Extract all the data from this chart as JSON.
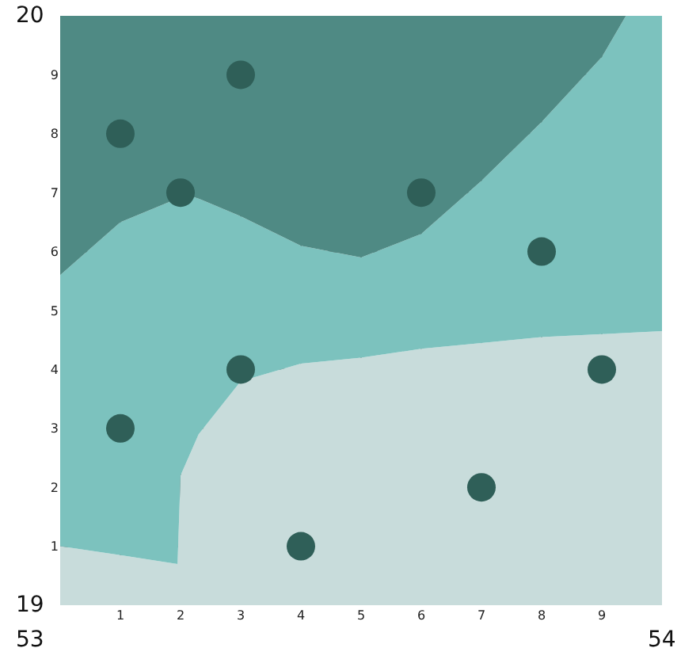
{
  "chart_data": {
    "type": "area",
    "stacked": true,
    "x": [
      0,
      1,
      1.95,
      2,
      2.3,
      3,
      4,
      5,
      6,
      7,
      8,
      9,
      9.4,
      10
    ],
    "series": [
      {
        "color": "#c8dcdb",
        "values": [
          1.0,
          0.85,
          0.7,
          2.2,
          2.9,
          3.8,
          4.1,
          4.2,
          4.35,
          4.45,
          4.55,
          4.6,
          4.62,
          4.65
        ]
      },
      {
        "color": "#7cc2be",
        "values": [
          4.6,
          5.65,
          6.2,
          4.8,
          4.0,
          2.8,
          2.0,
          1.7,
          1.95,
          2.75,
          3.65,
          4.7,
          5.38,
          5.35
        ]
      },
      {
        "color": "#4f8a84",
        "values": [
          4.4,
          3.5,
          3.1,
          3.0,
          3.1,
          3.4,
          3.9,
          4.1,
          3.7,
          2.8,
          1.8,
          0.7,
          0,
          0
        ]
      },
      {
        "type": "scatter",
        "marker": "circle",
        "color": "#2f5f58",
        "x": [
          1,
          2,
          3,
          6,
          8,
          1,
          3,
          9,
          7,
          4
        ],
        "values": [
          8,
          7,
          9,
          7,
          6,
          3,
          4,
          4,
          2,
          1
        ]
      }
    ],
    "xlim": [
      0,
      10
    ],
    "xticks": [
      1,
      2,
      3,
      4,
      5,
      6,
      7,
      8,
      9
    ],
    "ylim": [
      0,
      10
    ],
    "yticks": [
      1,
      2,
      3,
      4,
      5,
      6,
      7,
      8,
      9
    ],
    "grid": true,
    "annotations": [
      "20",
      "19",
      "53",
      "54"
    ]
  }
}
